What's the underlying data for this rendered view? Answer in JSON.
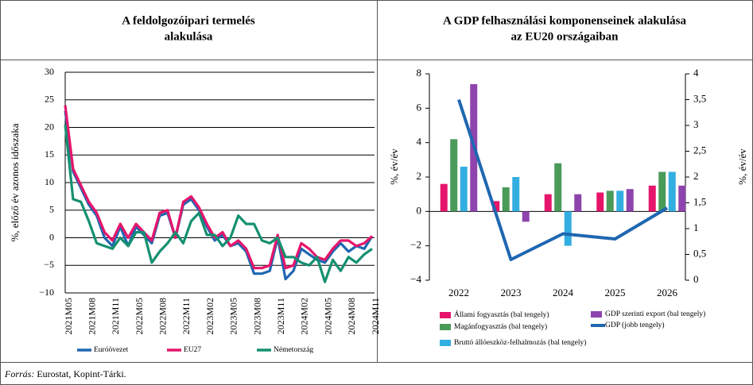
{
  "chart_data": [
    {
      "type": "line",
      "title": [
        "A feldolgozóipari termelés",
        "alakulása"
      ],
      "y_label": "%, előző év azonos időszaka",
      "categories": [
        "2021M05",
        null,
        null,
        "2021M08",
        null,
        null,
        "2021M11",
        null,
        null,
        "2022M05",
        null,
        null,
        "2022M08",
        null,
        null,
        "2022M11",
        null,
        null,
        "2023M02",
        null,
        null,
        "2023M05",
        null,
        null,
        "2023M08",
        null,
        null,
        "2023M11",
        null,
        null,
        "2024M02",
        null,
        null,
        "2024M05",
        null,
        null,
        "2024M08",
        null,
        null,
        "2024M11"
      ],
      "ylim": [
        -10,
        30
      ],
      "yticks": [
        {
          "value": -10,
          "label": "−10"
        },
        {
          "value": -5,
          "label": "−5"
        },
        0,
        5,
        10,
        15,
        20,
        25,
        30
      ],
      "grid": true,
      "legend": "bottom",
      "series": [
        {
          "name": "Euróövezet",
          "color": "#1f67b1",
          "values": [
            23,
            12,
            9,
            6,
            4,
            0,
            -1.5,
            2,
            -1.5,
            2,
            0.5,
            -1,
            4,
            4.5,
            0,
            6,
            7,
            5,
            2,
            -0.5,
            0.5,
            -1.5,
            -1,
            -2.5,
            -6.5,
            -6.5,
            -6,
            0,
            -7.5,
            -6,
            -2,
            -3,
            -4,
            -4.5,
            -2.5,
            -1,
            -2.5,
            -1.5,
            -2,
            0.3
          ]
        },
        {
          "name": "EU27",
          "color": "#e5156b",
          "values": [
            24,
            12.5,
            9.5,
            6.5,
            4.5,
            1,
            -0.5,
            2.5,
            0,
            2.5,
            1,
            -0.5,
            4.5,
            5,
            0,
            6.5,
            7.5,
            5.5,
            2.5,
            0,
            1,
            -1.5,
            -0.5,
            -2,
            -5.5,
            -5.5,
            -5,
            0.5,
            -5.5,
            -5,
            -1,
            -2,
            -3.5,
            -4,
            -2,
            -0.5,
            -0.5,
            -1.5,
            -1,
            0.3
          ]
        },
        {
          "name": "Németország",
          "color": "#159070",
          "values": [
            20.5,
            7,
            6.5,
            3,
            -1,
            -1.5,
            -2,
            0,
            -1.5,
            1,
            1,
            -4.5,
            -2.5,
            -1,
            1,
            -1,
            3,
            4.5,
            0.5,
            0.5,
            -1.5,
            0,
            4,
            2.5,
            2.5,
            -0.5,
            -1,
            0,
            -3.5,
            -3.5,
            -4.5,
            -5,
            -3.5,
            -8,
            -4,
            -6,
            -3.5,
            -4.5,
            -3,
            -2
          ]
        }
      ]
    },
    {
      "type": "bar",
      "title": [
        "A GDP felhasználási komponenseinek alakulása",
        "az EU20 országaiban"
      ],
      "y_label": "%, év/év",
      "y2_label": "%, év/év",
      "categories": [
        "2022",
        "2023",
        "2024",
        "2025",
        "2026"
      ],
      "ylim": [
        -4,
        8
      ],
      "yticks": [
        {
          "value": -4,
          "label": "−4"
        },
        {
          "value": -2,
          "label": "−2"
        },
        0,
        2,
        4,
        6,
        8
      ],
      "y2lim": [
        0,
        4
      ],
      "y2ticks": [
        0,
        {
          "value": 0.5,
          "label": "0,5"
        },
        1,
        {
          "value": 1.5,
          "label": "1,5"
        },
        2,
        {
          "value": 2.5,
          "label": "2,5"
        },
        3,
        {
          "value": 3.5,
          "label": "3,5"
        },
        4
      ],
      "legend": "bottom",
      "series": [
        {
          "name": "Állami fogyasztás (bal tengely)",
          "color": "#e5156b",
          "values": [
            1.6,
            0.6,
            1.0,
            1.1,
            1.5
          ]
        },
        {
          "name": "Magánfogyasztás (bal tengely)",
          "color": "#4a9a5a",
          "values": [
            4.2,
            1.4,
            2.8,
            1.2,
            2.3
          ]
        },
        {
          "name": "Bruttó állóeszköz-felhalmozás (bal tengely)",
          "color": "#33aee0",
          "values": [
            2.6,
            2.0,
            -2.0,
            1.2,
            2.3
          ]
        },
        {
          "name": "GDP szerinti export (bal tengely)",
          "color": "#8e44ad",
          "values": [
            7.4,
            -0.6,
            1.0,
            1.3,
            1.5
          ]
        },
        {
          "name": "GDP (jobb tengely)",
          "color": "#1f67b1",
          "type": "line",
          "axis": "y2",
          "values": [
            3.5,
            0.4,
            0.9,
            0.8,
            1.4
          ]
        }
      ]
    }
  ],
  "source": {
    "label": "Forrás:",
    "text": "Eurostat, Kopint-Tárki."
  }
}
